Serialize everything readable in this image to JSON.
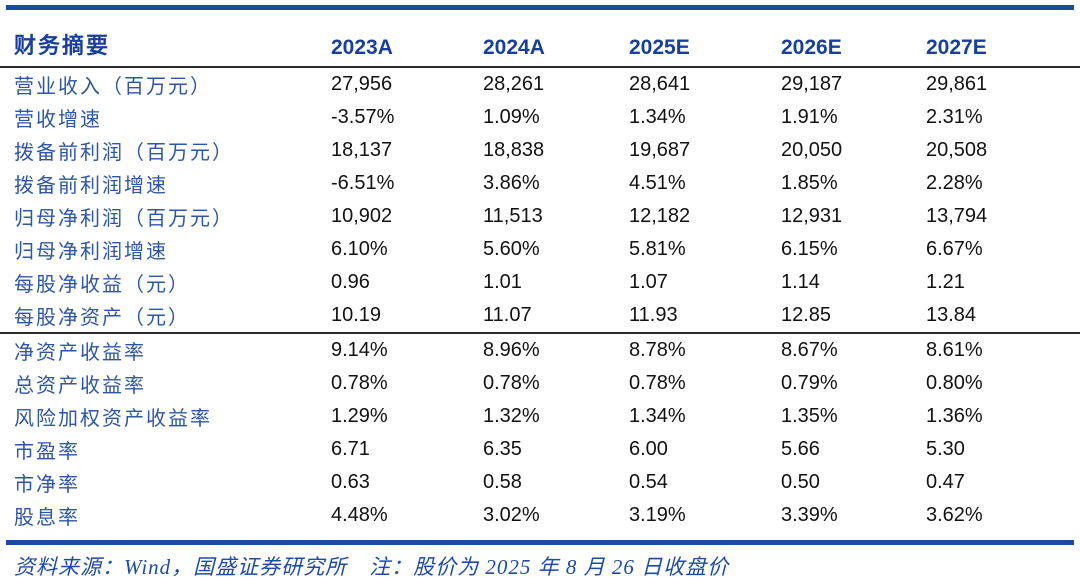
{
  "header": {
    "title": "财务摘要",
    "years": [
      "2023A",
      "2024A",
      "2025E",
      "2026E",
      "2027E"
    ]
  },
  "rows1": [
    {
      "label": "营业收入（百万元）",
      "values": [
        "27,956",
        "28,261",
        "28,641",
        "29,187",
        "29,861"
      ]
    },
    {
      "label": "营收增速",
      "values": [
        "-3.57%",
        "1.09%",
        "1.34%",
        "1.91%",
        "2.31%"
      ]
    },
    {
      "label": "拨备前利润（百万元）",
      "values": [
        "18,137",
        "18,838",
        "19,687",
        "20,050",
        "20,508"
      ]
    },
    {
      "label": "拨备前利润增速",
      "values": [
        "-6.51%",
        "3.86%",
        "4.51%",
        "1.85%",
        "2.28%"
      ]
    },
    {
      "label": "归母净利润（百万元）",
      "values": [
        "10,902",
        "11,513",
        "12,182",
        "12,931",
        "13,794"
      ]
    },
    {
      "label": "归母净利润增速",
      "values": [
        "6.10%",
        "5.60%",
        "5.81%",
        "6.15%",
        "6.67%"
      ]
    },
    {
      "label": "每股净收益（元）",
      "values": [
        "0.96",
        "1.01",
        "1.07",
        "1.14",
        "1.21"
      ]
    },
    {
      "label": "每股净资产（元）",
      "values": [
        "10.19",
        "11.07",
        "11.93",
        "12.85",
        "13.84"
      ]
    }
  ],
  "rows2": [
    {
      "label": "净资产收益率",
      "values": [
        "9.14%",
        "8.96%",
        "8.78%",
        "8.67%",
        "8.61%"
      ]
    },
    {
      "label": "总资产收益率",
      "values": [
        "0.78%",
        "0.78%",
        "0.78%",
        "0.79%",
        "0.80%"
      ]
    },
    {
      "label": "风险加权资产收益率",
      "values": [
        "1.29%",
        "1.32%",
        "1.34%",
        "1.35%",
        "1.36%"
      ]
    },
    {
      "label": "市盈率",
      "values": [
        "6.71",
        "6.35",
        "6.00",
        "5.66",
        "5.30"
      ]
    },
    {
      "label": "市净率",
      "values": [
        "0.63",
        "0.58",
        "0.54",
        "0.50",
        "0.47"
      ]
    },
    {
      "label": "股息率",
      "values": [
        "4.48%",
        "3.02%",
        "3.19%",
        "3.39%",
        "3.62%"
      ]
    }
  ],
  "footer": {
    "text": "资料来源：Wind，国盛证券研究所　注：股价为 2025 年 8 月 26 日收盘价"
  },
  "colors": {
    "brand_blue": "#1c4aa0",
    "header_text_blue": "#173f9b",
    "label_blue": "#2d55a8",
    "value_black": "#121212",
    "rule_dark": "#2b2b2b"
  }
}
